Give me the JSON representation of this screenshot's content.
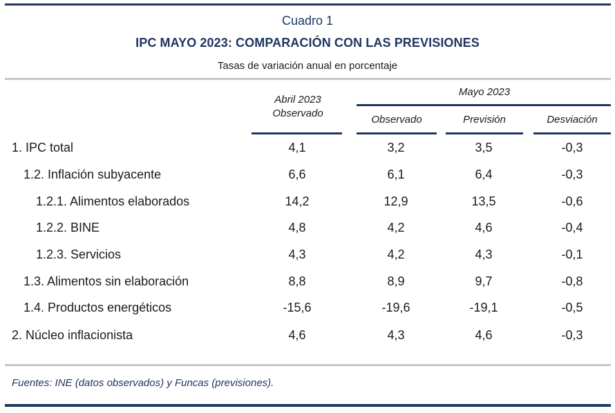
{
  "header": {
    "cuadro": "Cuadro 1",
    "title": "IPC MAYO 2023: COMPARACIÓN CON LAS PREVISIONES",
    "subtitle": "Tasas de variación anual en porcentaje"
  },
  "columns": {
    "abril_line1": "Abril 2023",
    "abril_line2": "Observado",
    "mayo_group": "Mayo 2023",
    "mayo_observado": "Observado",
    "mayo_prevision": "Previsión",
    "mayo_desviacion": "Desviación"
  },
  "rows": [
    {
      "label": "1. IPC total",
      "abril": "4,1",
      "observado": "3,2",
      "prevision": "3,5",
      "desviacion": "-0,3"
    },
    {
      "label": "1.2. Inflación subyacente",
      "abril": "6,6",
      "observado": "6,1",
      "prevision": "6,4",
      "desviacion": "-0,3"
    },
    {
      "label": "1.2.1. Alimentos elaborados",
      "abril": "14,2",
      "observado": "12,9",
      "prevision": "13,5",
      "desviacion": "-0,6"
    },
    {
      "label": "1.2.2. BINE",
      "abril": "4,8",
      "observado": "4,2",
      "prevision": "4,6",
      "desviacion": "-0,4"
    },
    {
      "label": "1.2.3. Servicios",
      "abril": "4,3",
      "observado": "4,2",
      "prevision": "4,3",
      "desviacion": "-0,1"
    },
    {
      "label": "1.3. Alimentos sin elaboración",
      "abril": "8,8",
      "observado": "8,9",
      "prevision": "9,7",
      "desviacion": "-0,8"
    },
    {
      "label": "1.4. Productos energéticos",
      "abril": "-15,6",
      "observado": "-19,6",
      "prevision": "-19,1",
      "desviacion": "-0,5"
    },
    {
      "label": "2. Núcleo inflacionista",
      "abril": "4,6",
      "observado": "4,3",
      "prevision": "4,6",
      "desviacion": "-0,3"
    }
  ],
  "footer": {
    "source": "Fuentes: INE (datos observados) y Funcas (previsiones)."
  }
}
